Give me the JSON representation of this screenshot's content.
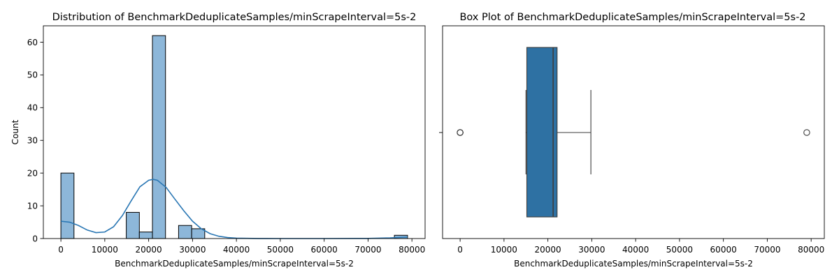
{
  "colors": {
    "hist_fill": "#8db7d9",
    "kde_line": "#2a77b4",
    "box_fill": "#2e71a3",
    "edge": "#3d3d3d"
  },
  "chart_data": [
    {
      "type": "bar",
      "subtype": "histogram-with-kde",
      "title": "Distribution of BenchmarkDeduplicateSamples/minScrapeInterval=5s-2",
      "xlabel": "BenchmarkDeduplicateSamples/minScrapeInterval=5s-2",
      "ylabel": "Count",
      "xlim": [
        -4000,
        83000
      ],
      "ylim": [
        0,
        65
      ],
      "xticks": [
        0,
        10000,
        20000,
        30000,
        40000,
        50000,
        60000,
        70000,
        80000
      ],
      "yticks": [
        0,
        10,
        20,
        30,
        40,
        50,
        60
      ],
      "bins": [
        {
          "x0": 0,
          "x1": 2980,
          "count": 20
        },
        {
          "x0": 14900,
          "x1": 17880,
          "count": 8
        },
        {
          "x0": 17880,
          "x1": 20860,
          "count": 2
        },
        {
          "x0": 20860,
          "x1": 23840,
          "count": 62
        },
        {
          "x0": 26820,
          "x1": 29800,
          "count": 4
        },
        {
          "x0": 29800,
          "x1": 32780,
          "count": 3
        },
        {
          "x0": 76000,
          "x1": 79000,
          "count": 1
        }
      ],
      "kde": {
        "x": [
          0,
          2000,
          4000,
          6000,
          8000,
          10000,
          12000,
          14000,
          16000,
          18000,
          20000,
          21000,
          22000,
          24000,
          26000,
          28000,
          30000,
          32000,
          34000,
          36000,
          38000,
          40000,
          45000,
          50000,
          60000,
          70000,
          75000,
          78000,
          79000
        ],
        "y": [
          5.3,
          5.0,
          4.0,
          2.6,
          1.8,
          2.0,
          3.6,
          7.0,
          11.5,
          15.8,
          17.8,
          18.1,
          17.8,
          15.6,
          12.0,
          8.5,
          5.3,
          3.0,
          1.5,
          0.7,
          0.3,
          0.12,
          0.02,
          0.0,
          0.0,
          0.05,
          0.2,
          0.4,
          0.45
        ]
      }
    },
    {
      "type": "box",
      "title": "Box Plot of BenchmarkDeduplicateSamples/minScrapeInterval=5s-2",
      "xlabel": "BenchmarkDeduplicateSamples/minScrapeInterval=5s-2",
      "xlim": [
        -4000,
        83000
      ],
      "xticks": [
        0,
        10000,
        20000,
        30000,
        40000,
        50000,
        60000,
        70000,
        80000
      ],
      "whisker_low": 15000,
      "q1": 15200,
      "median": 21200,
      "q3": 22100,
      "whisker_high": 29800,
      "outliers": [
        0,
        0,
        0,
        79000
      ]
    }
  ]
}
